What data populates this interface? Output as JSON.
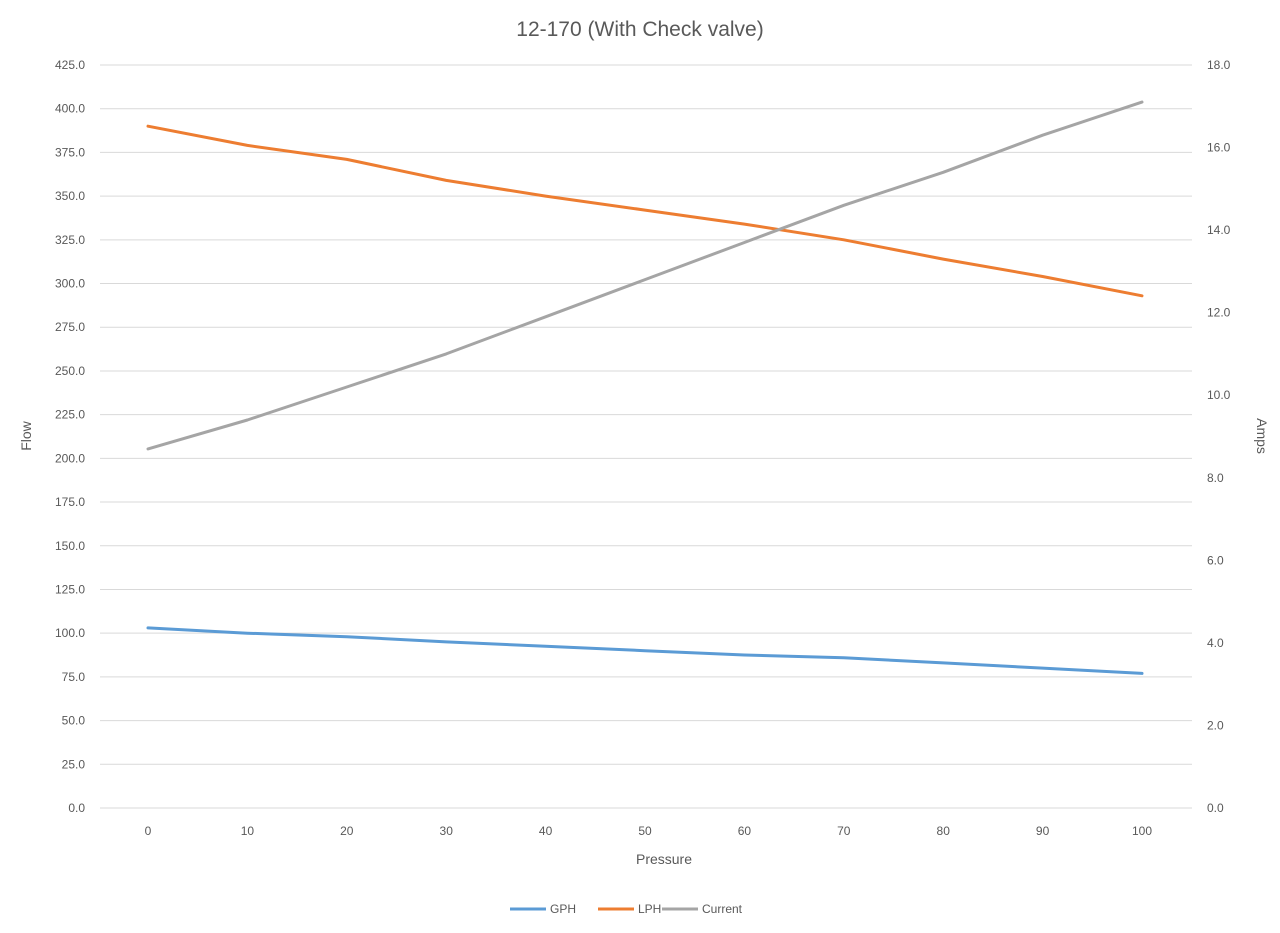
{
  "chart_data": {
    "type": "line",
    "title": "12-170 (With Check valve)",
    "xlabel": "Pressure",
    "ylabel": "Flow",
    "y2label": "Amps",
    "x": [
      0,
      10,
      20,
      30,
      40,
      50,
      60,
      70,
      80,
      90,
      100
    ],
    "x_tick_labels": [
      "0",
      "10",
      "20",
      "30",
      "40",
      "50",
      "60",
      "70",
      "80",
      "90",
      "100"
    ],
    "ylim": [
      0,
      425
    ],
    "y_tick_labels": [
      "0.0",
      "25.0",
      "50.0",
      "75.0",
      "100.0",
      "125.0",
      "150.0",
      "175.0",
      "200.0",
      "225.0",
      "250.0",
      "275.0",
      "300.0",
      "325.0",
      "350.0",
      "375.0",
      "400.0",
      "425.0"
    ],
    "y2lim": [
      0,
      18
    ],
    "y2_tick_labels": [
      "0.0",
      "2.0",
      "4.0",
      "6.0",
      "8.0",
      "10.0",
      "12.0",
      "14.0",
      "16.0",
      "18.0"
    ],
    "grid": true,
    "legend_position": "bottom",
    "series": [
      {
        "name": "GPH",
        "axis": "left",
        "color": "#5b9bd5",
        "values": [
          103,
          100,
          98,
          95,
          92.5,
          90,
          87.5,
          86,
          83,
          80,
          77
        ]
      },
      {
        "name": "LPH",
        "axis": "left",
        "color": "#ed7d31",
        "values": [
          390,
          379,
          371,
          359,
          350,
          342,
          334,
          325,
          314,
          304,
          293
        ]
      },
      {
        "name": "Current",
        "axis": "right",
        "color": "#a5a5a5",
        "values": [
          8.7,
          9.4,
          10.2,
          11.0,
          11.9,
          12.8,
          13.7,
          14.6,
          15.4,
          16.3,
          17.1
        ]
      }
    ]
  }
}
